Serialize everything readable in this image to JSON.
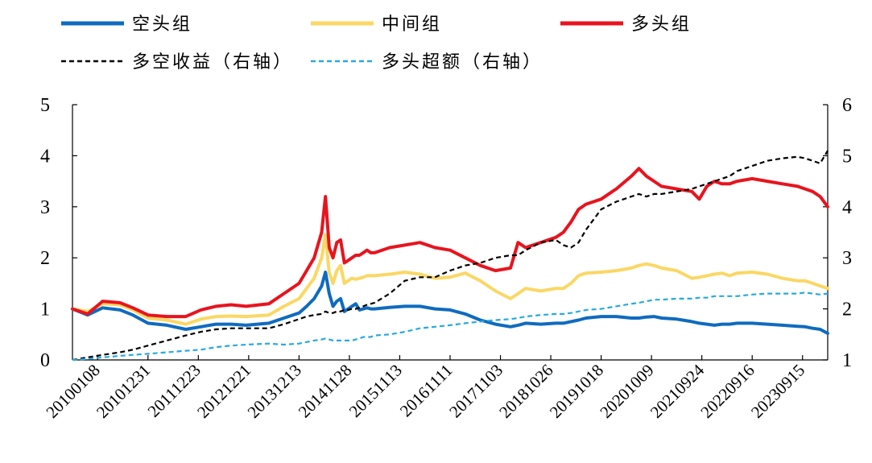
{
  "chart_data": {
    "type": "line",
    "title": "",
    "xlabel": "",
    "ylabel": "",
    "ylim_left": [
      0,
      5
    ],
    "ylim_right": [
      1,
      6
    ],
    "yticks_left": [
      "0",
      "1",
      "2",
      "3",
      "4",
      "5"
    ],
    "yticks_right": [
      "1",
      "2",
      "3",
      "4",
      "5",
      "6"
    ],
    "xtick_labels": [
      "20100108",
      "20101231",
      "20111223",
      "20121221",
      "20131213",
      "20141128",
      "20151113",
      "20161111",
      "20171103",
      "20181026",
      "20191018",
      "20201009",
      "20210924",
      "20220916",
      "20230915"
    ],
    "grid": false,
    "legend_position": "top",
    "x": [
      0,
      0.02,
      0.04,
      0.063,
      0.08,
      0.1,
      0.125,
      0.15,
      0.17,
      0.19,
      0.21,
      0.23,
      0.26,
      0.28,
      0.3,
      0.31,
      0.32,
      0.33,
      0.335,
      0.34,
      0.345,
      0.35,
      0.355,
      0.36,
      0.365,
      0.37,
      0.375,
      0.38,
      0.385,
      0.39,
      0.395,
      0.4,
      0.42,
      0.44,
      0.46,
      0.48,
      0.5,
      0.52,
      0.54,
      0.56,
      0.58,
      0.59,
      0.6,
      0.62,
      0.64,
      0.65,
      0.66,
      0.67,
      0.68,
      0.7,
      0.72,
      0.74,
      0.75,
      0.76,
      0.77,
      0.78,
      0.8,
      0.82,
      0.83,
      0.84,
      0.85,
      0.86,
      0.87,
      0.88,
      0.9,
      0.92,
      0.94,
      0.96,
      0.97,
      0.98,
      0.99,
      1.0
    ],
    "series": [
      {
        "name": "空头组",
        "axis": "left",
        "color": "#0f6bbf",
        "dash": "solid",
        "values": [
          1.0,
          0.88,
          1.02,
          0.98,
          0.88,
          0.72,
          0.68,
          0.6,
          0.65,
          0.7,
          0.7,
          0.68,
          0.72,
          0.82,
          0.92,
          1.05,
          1.2,
          1.45,
          1.72,
          1.3,
          1.05,
          1.15,
          1.2,
          0.95,
          1.0,
          1.05,
          1.1,
          0.98,
          1.0,
          1.02,
          1.0,
          1.0,
          1.03,
          1.05,
          1.05,
          1.0,
          0.98,
          0.9,
          0.78,
          0.7,
          0.65,
          0.68,
          0.72,
          0.7,
          0.72,
          0.72,
          0.75,
          0.78,
          0.82,
          0.85,
          0.85,
          0.82,
          0.82,
          0.84,
          0.85,
          0.82,
          0.8,
          0.75,
          0.72,
          0.7,
          0.68,
          0.7,
          0.7,
          0.72,
          0.72,
          0.7,
          0.68,
          0.66,
          0.65,
          0.62,
          0.6,
          0.52
        ]
      },
      {
        "name": "中间组",
        "axis": "left",
        "color": "#fbd764",
        "dash": "solid",
        "values": [
          1.0,
          0.95,
          1.1,
          1.08,
          0.98,
          0.82,
          0.78,
          0.7,
          0.8,
          0.85,
          0.86,
          0.85,
          0.88,
          1.05,
          1.2,
          1.4,
          1.6,
          2.0,
          2.45,
          1.7,
          1.5,
          1.75,
          1.85,
          1.5,
          1.55,
          1.6,
          1.58,
          1.6,
          1.62,
          1.65,
          1.65,
          1.65,
          1.68,
          1.72,
          1.68,
          1.6,
          1.62,
          1.7,
          1.55,
          1.35,
          1.2,
          1.3,
          1.4,
          1.35,
          1.4,
          1.4,
          1.5,
          1.65,
          1.7,
          1.72,
          1.75,
          1.8,
          1.85,
          1.88,
          1.85,
          1.8,
          1.75,
          1.6,
          1.62,
          1.65,
          1.68,
          1.7,
          1.65,
          1.7,
          1.72,
          1.68,
          1.6,
          1.55,
          1.55,
          1.5,
          1.45,
          1.4
        ]
      },
      {
        "name": "多头组",
        "axis": "left",
        "color": "#e8141e",
        "dash": "solid",
        "values": [
          1.0,
          0.9,
          1.15,
          1.12,
          1.02,
          0.88,
          0.85,
          0.85,
          0.98,
          1.05,
          1.08,
          1.05,
          1.1,
          1.3,
          1.5,
          1.75,
          2.0,
          2.5,
          3.2,
          2.2,
          2.0,
          2.3,
          2.35,
          1.9,
          1.95,
          2.0,
          2.05,
          2.05,
          2.1,
          2.15,
          2.1,
          2.1,
          2.2,
          2.25,
          2.3,
          2.2,
          2.15,
          2.0,
          1.85,
          1.75,
          1.8,
          2.3,
          2.2,
          2.3,
          2.4,
          2.5,
          2.7,
          2.95,
          3.05,
          3.15,
          3.35,
          3.6,
          3.75,
          3.6,
          3.5,
          3.4,
          3.35,
          3.3,
          3.15,
          3.4,
          3.5,
          3.45,
          3.45,
          3.5,
          3.55,
          3.5,
          3.45,
          3.4,
          3.35,
          3.3,
          3.2,
          3.0
        ]
      },
      {
        "name": "多空收益（右轴）",
        "axis": "right",
        "color": "#000000",
        "dash": "dashed",
        "values": [
          1.0,
          1.05,
          1.1,
          1.15,
          1.2,
          1.28,
          1.38,
          1.48,
          1.55,
          1.6,
          1.62,
          1.62,
          1.62,
          1.7,
          1.8,
          1.85,
          1.88,
          1.9,
          1.95,
          1.92,
          1.92,
          1.95,
          1.95,
          1.98,
          1.98,
          2.0,
          2.0,
          2.02,
          2.05,
          2.08,
          2.1,
          2.12,
          2.3,
          2.55,
          2.62,
          2.62,
          2.75,
          2.85,
          2.9,
          3.0,
          3.05,
          3.05,
          3.15,
          3.3,
          3.35,
          3.25,
          3.2,
          3.3,
          3.55,
          3.95,
          4.1,
          4.2,
          4.25,
          4.2,
          4.25,
          4.25,
          4.3,
          4.35,
          4.4,
          4.45,
          4.5,
          4.55,
          4.6,
          4.7,
          4.8,
          4.9,
          4.95,
          4.98,
          4.95,
          4.9,
          4.85,
          5.1
        ]
      },
      {
        "name": "多头超额（右轴）",
        "axis": "right",
        "color": "#29a9e1",
        "dash": "dashed",
        "values": [
          1.0,
          1.02,
          1.05,
          1.08,
          1.1,
          1.12,
          1.15,
          1.18,
          1.2,
          1.25,
          1.28,
          1.3,
          1.32,
          1.3,
          1.32,
          1.35,
          1.38,
          1.4,
          1.42,
          1.4,
          1.38,
          1.38,
          1.38,
          1.38,
          1.38,
          1.38,
          1.4,
          1.42,
          1.45,
          1.45,
          1.45,
          1.48,
          1.5,
          1.55,
          1.62,
          1.65,
          1.68,
          1.72,
          1.75,
          1.78,
          1.8,
          1.82,
          1.85,
          1.88,
          1.9,
          1.9,
          1.92,
          1.95,
          1.98,
          2.0,
          2.05,
          2.1,
          2.12,
          2.15,
          2.18,
          2.18,
          2.2,
          2.2,
          2.22,
          2.22,
          2.25,
          2.25,
          2.25,
          2.25,
          2.28,
          2.3,
          2.3,
          2.3,
          2.32,
          2.3,
          2.28,
          2.3
        ]
      }
    ]
  }
}
